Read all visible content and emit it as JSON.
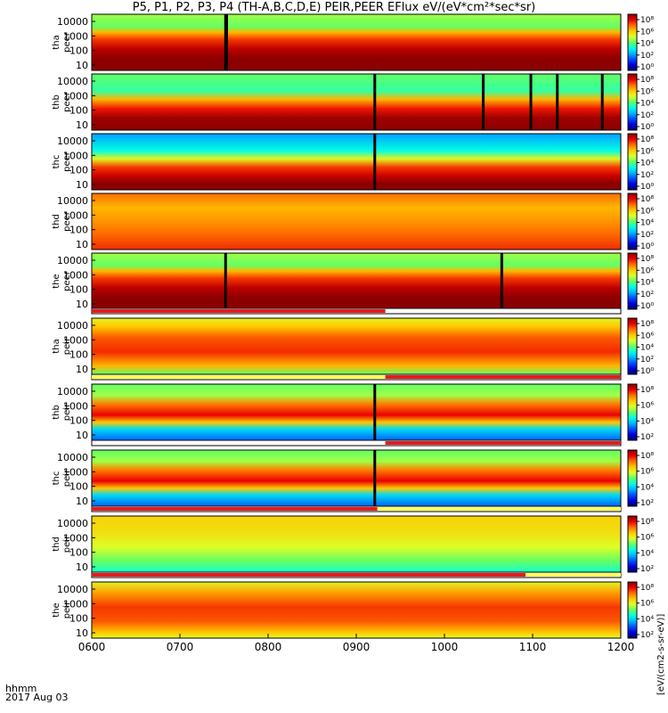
{
  "title": "P5, P1, P2, P3, P4 (TH-A,B,C,D,E) PEIR,PEER EFlux eV/(eV*cm²*sec*sr)",
  "footer": {
    "time_label": "hhmm",
    "date_label": "2017 Aug 03"
  },
  "colorbar_unit": "[eV/(cm2-s-sr-eV)]",
  "colors": {
    "bar_red": "#e8191b",
    "bar_yellow": "#ffff55"
  },
  "chart_data": {
    "type": "heatmap",
    "x_axis": {
      "ticks": [
        "0600",
        "0700",
        "0800",
        "0900",
        "1000",
        "1100",
        "1200"
      ],
      "range": [
        "0600",
        "1200"
      ]
    },
    "y_axis": {
      "scale": "log",
      "ticks": [
        "10",
        "100",
        "1000",
        "10000"
      ],
      "units": "eV"
    },
    "colorbar": {
      "scale": "log",
      "ticks_full": [
        "10⁰",
        "10²",
        "10⁴",
        "10⁶",
        "10⁸"
      ],
      "ticks_short": [
        "10²",
        "10⁴",
        "10⁶",
        "10⁸"
      ]
    },
    "panels": [
      {
        "probe": "tha",
        "product": "peer",
        "label_top": "tha",
        "label_bottom": "peer",
        "pattern": "ion_hot",
        "gaps": [
          0.253,
          0.255
        ]
      },
      {
        "probe": "thb",
        "product": "peer",
        "label_top": "thb",
        "label_bottom": "peer",
        "pattern": "electron_mixed",
        "gaps": [
          0.535,
          0.74,
          0.83,
          0.88,
          0.965
        ]
      },
      {
        "probe": "thc",
        "product": "peer",
        "label_top": "thc",
        "label_bottom": "peer",
        "pattern": "electron_blue",
        "gaps": [
          0.535
        ]
      },
      {
        "probe": "thd",
        "product": "peer",
        "label_top": "thd",
        "label_bottom": "peer",
        "pattern": "electron_orange",
        "gaps": []
      },
      {
        "probe": "the",
        "product": "peer",
        "label_top": "the",
        "label_bottom": "peer",
        "pattern": "ion_hot",
        "gaps": [
          0.253,
          0.775
        ]
      },
      {
        "probe": "tha",
        "product": "peir",
        "label_top": "tha",
        "label_bottom": "peir",
        "pattern": "ion_orange",
        "gaps": []
      },
      {
        "probe": "thb",
        "product": "peir",
        "label_top": "thb",
        "label_bottom": "peir",
        "pattern": "ion_split",
        "gaps": [
          0.535
        ]
      },
      {
        "probe": "thc",
        "product": "peir",
        "label_top": "thc",
        "label_bottom": "peir",
        "pattern": "ion_split",
        "gaps": [
          0.535
        ]
      },
      {
        "probe": "thd",
        "product": "peir",
        "label_top": "thd",
        "label_bottom": "peir",
        "pattern": "ion_green",
        "gaps": []
      },
      {
        "probe": "the",
        "product": "peir",
        "label_top": "the",
        "label_bottom": "peir",
        "pattern": "ion_orange2",
        "gaps": []
      }
    ],
    "mode_bars": [
      {
        "after_panel": 4,
        "segments": [
          {
            "start": 0.0,
            "end": 0.555,
            "color": "red"
          }
        ]
      },
      {
        "after_panel": 5,
        "segments": [
          {
            "start": 0.0,
            "end": 0.555,
            "color": "yellow"
          },
          {
            "start": 0.555,
            "end": 1.0,
            "color": "red"
          }
        ]
      },
      {
        "after_panel": 6,
        "segments": [
          {
            "start": 0.555,
            "end": 1.0,
            "color": "red"
          }
        ]
      },
      {
        "after_panel": 7,
        "segments": [
          {
            "start": 0.0,
            "end": 0.54,
            "color": "red"
          },
          {
            "start": 0.54,
            "end": 1.0,
            "color": "yellow"
          }
        ]
      },
      {
        "after_panel": 8,
        "segments": [
          {
            "start": 0.0,
            "end": 0.82,
            "color": "red"
          },
          {
            "start": 0.82,
            "end": 1.0,
            "color": "yellow"
          }
        ]
      }
    ]
  }
}
